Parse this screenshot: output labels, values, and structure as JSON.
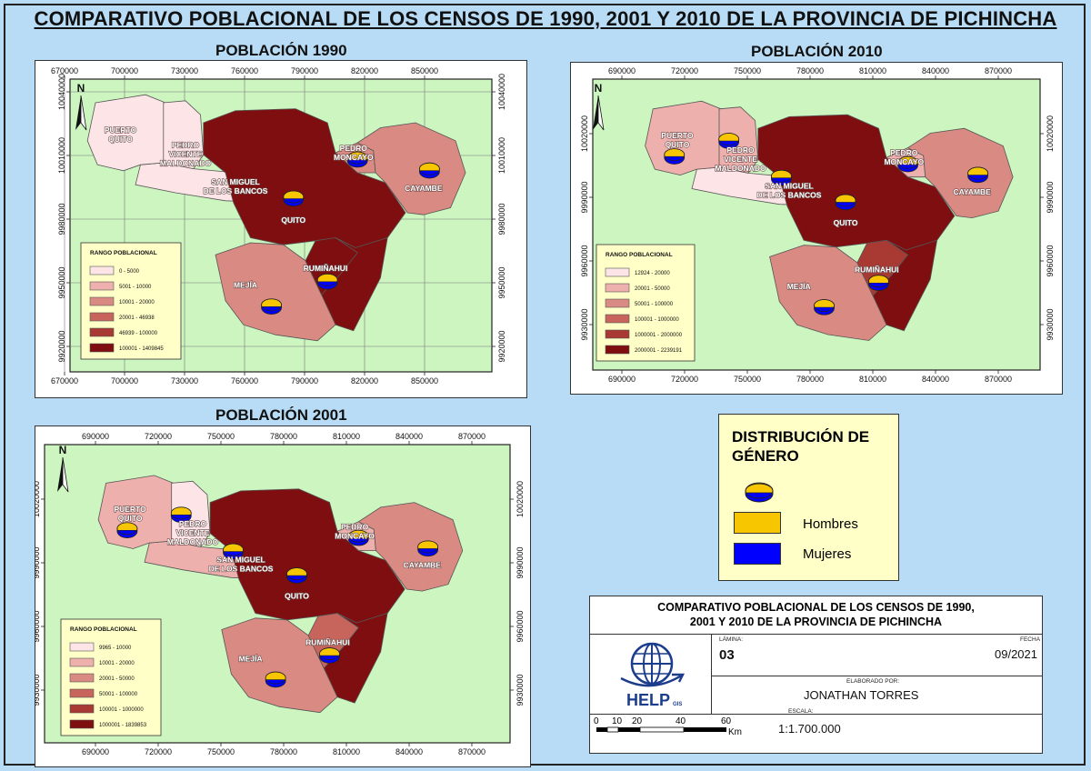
{
  "main_title": "COMPARATIVO POBLACIONAL DE LOS CENSOS DE 1990, 2001 Y 2010 DE LA PROVINCIA DE PICHINCHA",
  "colors": {
    "background": "#b8dcf5",
    "map_background": "#ccf5c0",
    "legend_background": "#ffffc8",
    "class1": "#fde4e6",
    "class2": "#edb0ac",
    "class3": "#d98a82",
    "class4": "#c7655d",
    "class5": "#a83a33",
    "class6": "#7e0e0f",
    "hombres": "#f7c600",
    "mujeres": "#0000ff"
  },
  "maps": {
    "m1990": {
      "title": "POBLACIÓN 1990",
      "x_ticks_top": [
        "670000",
        "700000",
        "730000",
        "760000",
        "790000",
        "820000",
        "850000"
      ],
      "x_ticks_bottom": [
        "670000",
        "700000",
        "730000",
        "760000",
        "790000",
        "820000",
        "850000"
      ],
      "y_ticks_left": [
        "10040000",
        "10010000",
        "9980000",
        "9950000",
        "9920000"
      ],
      "y_ticks_right": [
        "10040000",
        "10010000",
        "9980000",
        "9950000",
        "9920000"
      ],
      "north": "N",
      "cantons": {
        "puerto_quito": "PUERTO QUITO",
        "pvm": "PEDRO VICENTE MALDONADO",
        "smb": "SAN MIGUEL DE LOS BANCOS",
        "pedro_moncayo": "PEDRO MONCAYO",
        "cayambe": "CAYAMBE",
        "quito": "QUITO",
        "mejia": "MEJÍA",
        "ruminahui": "RUMIÑAHUI"
      },
      "legend_title": "RANGO POBLACIONAL",
      "legend": [
        "0 - 5000",
        "5001 - 10000",
        "10001 - 20000",
        "20001 - 46938",
        "46939 - 100000",
        "100001 - 1409845"
      ]
    },
    "m2010": {
      "title": "POBLACIÓN 2010",
      "x_ticks_top": [
        "690000",
        "720000",
        "750000",
        "780000",
        "810000",
        "840000",
        "870000"
      ],
      "x_ticks_bottom": [
        "690000",
        "720000",
        "750000",
        "780000",
        "810000",
        "840000",
        "870000"
      ],
      "y_ticks_left": [
        "10020000",
        "9990000",
        "9960000",
        "9930000"
      ],
      "y_ticks_right": [
        "10020000",
        "9990000",
        "9960000",
        "9930000"
      ],
      "north": "N",
      "cantons": {
        "puerto_quito": "PUERTO QUITO",
        "pvm": "PEDRO VICENTE MALDONADO",
        "smb": "SAN MIGUEL DE LOS BANCOS",
        "pedro_moncayo": "PEDRO MONCAYO",
        "cayambe": "CAYAMBE",
        "quito": "QUITO",
        "mejia": "MEJÍA",
        "ruminahui": "RUMIÑAHUI"
      },
      "legend_title": "RANGO POBLACIONAL",
      "legend": [
        "12924 - 20000",
        "20001 - 50000",
        "50001 - 100000",
        "100001 - 1000000",
        "1000001 - 2000000",
        "2000001 - 2239191"
      ]
    },
    "m2001": {
      "title": "POBLACIÓN 2001",
      "x_ticks_top": [
        "690000",
        "720000",
        "750000",
        "780000",
        "810000",
        "840000",
        "870000"
      ],
      "x_ticks_bottom": [
        "690000",
        "720000",
        "750000",
        "780000",
        "810000",
        "840000",
        "870000"
      ],
      "y_ticks_left": [
        "10020000",
        "9990000",
        "9960000",
        "9930000"
      ],
      "y_ticks_right": [
        "10020000",
        "9990000",
        "9960000",
        "9930000"
      ],
      "north": "N",
      "cantons": {
        "puerto_quito": "PUERTO QUITO",
        "pvm": "PEDRO VICENTE MALDONADO",
        "smb": "SAN MIGUEL DE LOS BANCOS",
        "pedro_moncayo": "PEDRO MONCAYO",
        "cayambe": "CAYAMBE",
        "quito": "QUITO",
        "mejia": "MEJÍA",
        "ruminahui": "RUMIÑAHUI"
      },
      "legend_title": "RANGO POBLACIONAL",
      "legend": [
        "9965 - 10000",
        "10001 - 20000",
        "20001 - 50000",
        "50001 - 100000",
        "100001 - 1000000",
        "1000001 - 1839853"
      ]
    }
  },
  "gender_legend": {
    "title": "DISTRIBUCIÓN DE GÉNERO",
    "hombres": "Hombres",
    "mujeres": "Mujeres"
  },
  "title_block": {
    "title_line1": "COMPARATIVO POBLACIONAL DE LOS CENSOS DE 1990,",
    "title_line2": "2001 Y 2010 DE LA PROVINCIA DE PICHINCHA",
    "lamina_label": "LÁMINA:",
    "lamina": "03",
    "fecha_label": "FECHA",
    "fecha": "09/2021",
    "elaborado_label": "ELABORADO POR:",
    "elaborado": "JONATHAN TORRES",
    "escala_label": "ESCALA:",
    "escala": "1:1.700.000",
    "scale_ticks": [
      "0",
      "10",
      "20",
      "40",
      "60"
    ],
    "scale_unit": "Km",
    "logo_text": "HELP",
    "logo_sub": "GIS"
  }
}
